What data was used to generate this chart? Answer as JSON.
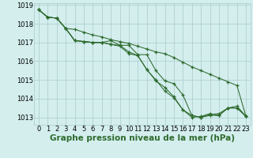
{
  "xlabel": "Graphe pression niveau de la mer (hPa)",
  "ylim": [
    1012.6,
    1019.1
  ],
  "xlim": [
    -0.5,
    23.5
  ],
  "yticks": [
    1013,
    1014,
    1015,
    1016,
    1017,
    1018,
    1019
  ],
  "xticks": [
    0,
    1,
    2,
    3,
    4,
    5,
    6,
    7,
    8,
    9,
    10,
    11,
    12,
    13,
    14,
    15,
    16,
    17,
    18,
    19,
    20,
    21,
    22,
    23
  ],
  "bg_color": "#d4eeee",
  "grid_color": "#b0d0d0",
  "line_color": "#2d6a2d",
  "series": [
    [
      1018.75,
      1018.35,
      1018.3,
      1017.75,
      1017.1,
      1017.05,
      1017.0,
      1017.0,
      1017.1,
      1016.85,
      1016.85,
      1016.35,
      1016.35,
      1015.5,
      1014.95,
      1014.8,
      1014.2,
      1013.1,
      1013.0,
      1013.15,
      1013.2,
      1013.5,
      1013.6,
      1013.05
    ],
    [
      1018.75,
      1018.35,
      1018.3,
      1017.75,
      1017.1,
      1017.05,
      1017.0,
      1017.0,
      1016.9,
      1016.85,
      1016.5,
      1016.3,
      1015.55,
      1014.95,
      1014.6,
      1014.1,
      1013.4,
      1013.1,
      1013.0,
      1013.1,
      1013.1,
      1013.5,
      1013.5,
      1013.05
    ],
    [
      1018.75,
      1018.35,
      1018.3,
      1017.75,
      1017.1,
      1017.05,
      1017.0,
      1017.0,
      1016.9,
      1016.8,
      1016.4,
      1016.3,
      1015.55,
      1015.0,
      1014.4,
      1014.05,
      1013.4,
      1013.0,
      1013.05,
      1013.2,
      1013.1,
      1013.5,
      1013.5,
      1013.05
    ],
    [
      1018.75,
      1018.35,
      1018.3,
      1017.75,
      1017.7,
      1017.55,
      1017.4,
      1017.3,
      1017.15,
      1017.05,
      1016.95,
      1016.8,
      1016.65,
      1016.5,
      1016.4,
      1016.2,
      1015.95,
      1015.7,
      1015.5,
      1015.3,
      1015.1,
      1014.9,
      1014.7,
      1013.05
    ]
  ],
  "tick_fontsize": 6.0,
  "label_fontsize": 7.5,
  "label_fontweight": "bold"
}
